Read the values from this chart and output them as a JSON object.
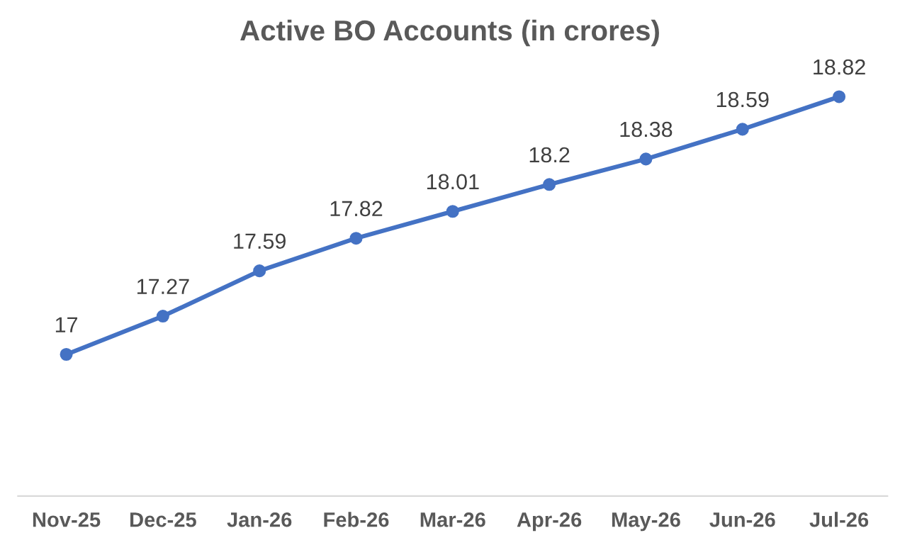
{
  "chart_data": {
    "type": "line",
    "title": "Active BO Accounts (in crores)",
    "categories": [
      "Nov-25",
      "Dec-25",
      "Jan-26",
      "Feb-26",
      "Mar-26",
      "Apr-26",
      "May-26",
      "Jun-26",
      "Jul-26"
    ],
    "values": [
      17,
      17.27,
      17.59,
      17.82,
      18.01,
      18.2,
      18.38,
      18.59,
      18.82
    ],
    "color": "#4472c4",
    "marker": "circle",
    "line_style": "solid",
    "data_labels": true,
    "grid": false,
    "legend": false
  }
}
